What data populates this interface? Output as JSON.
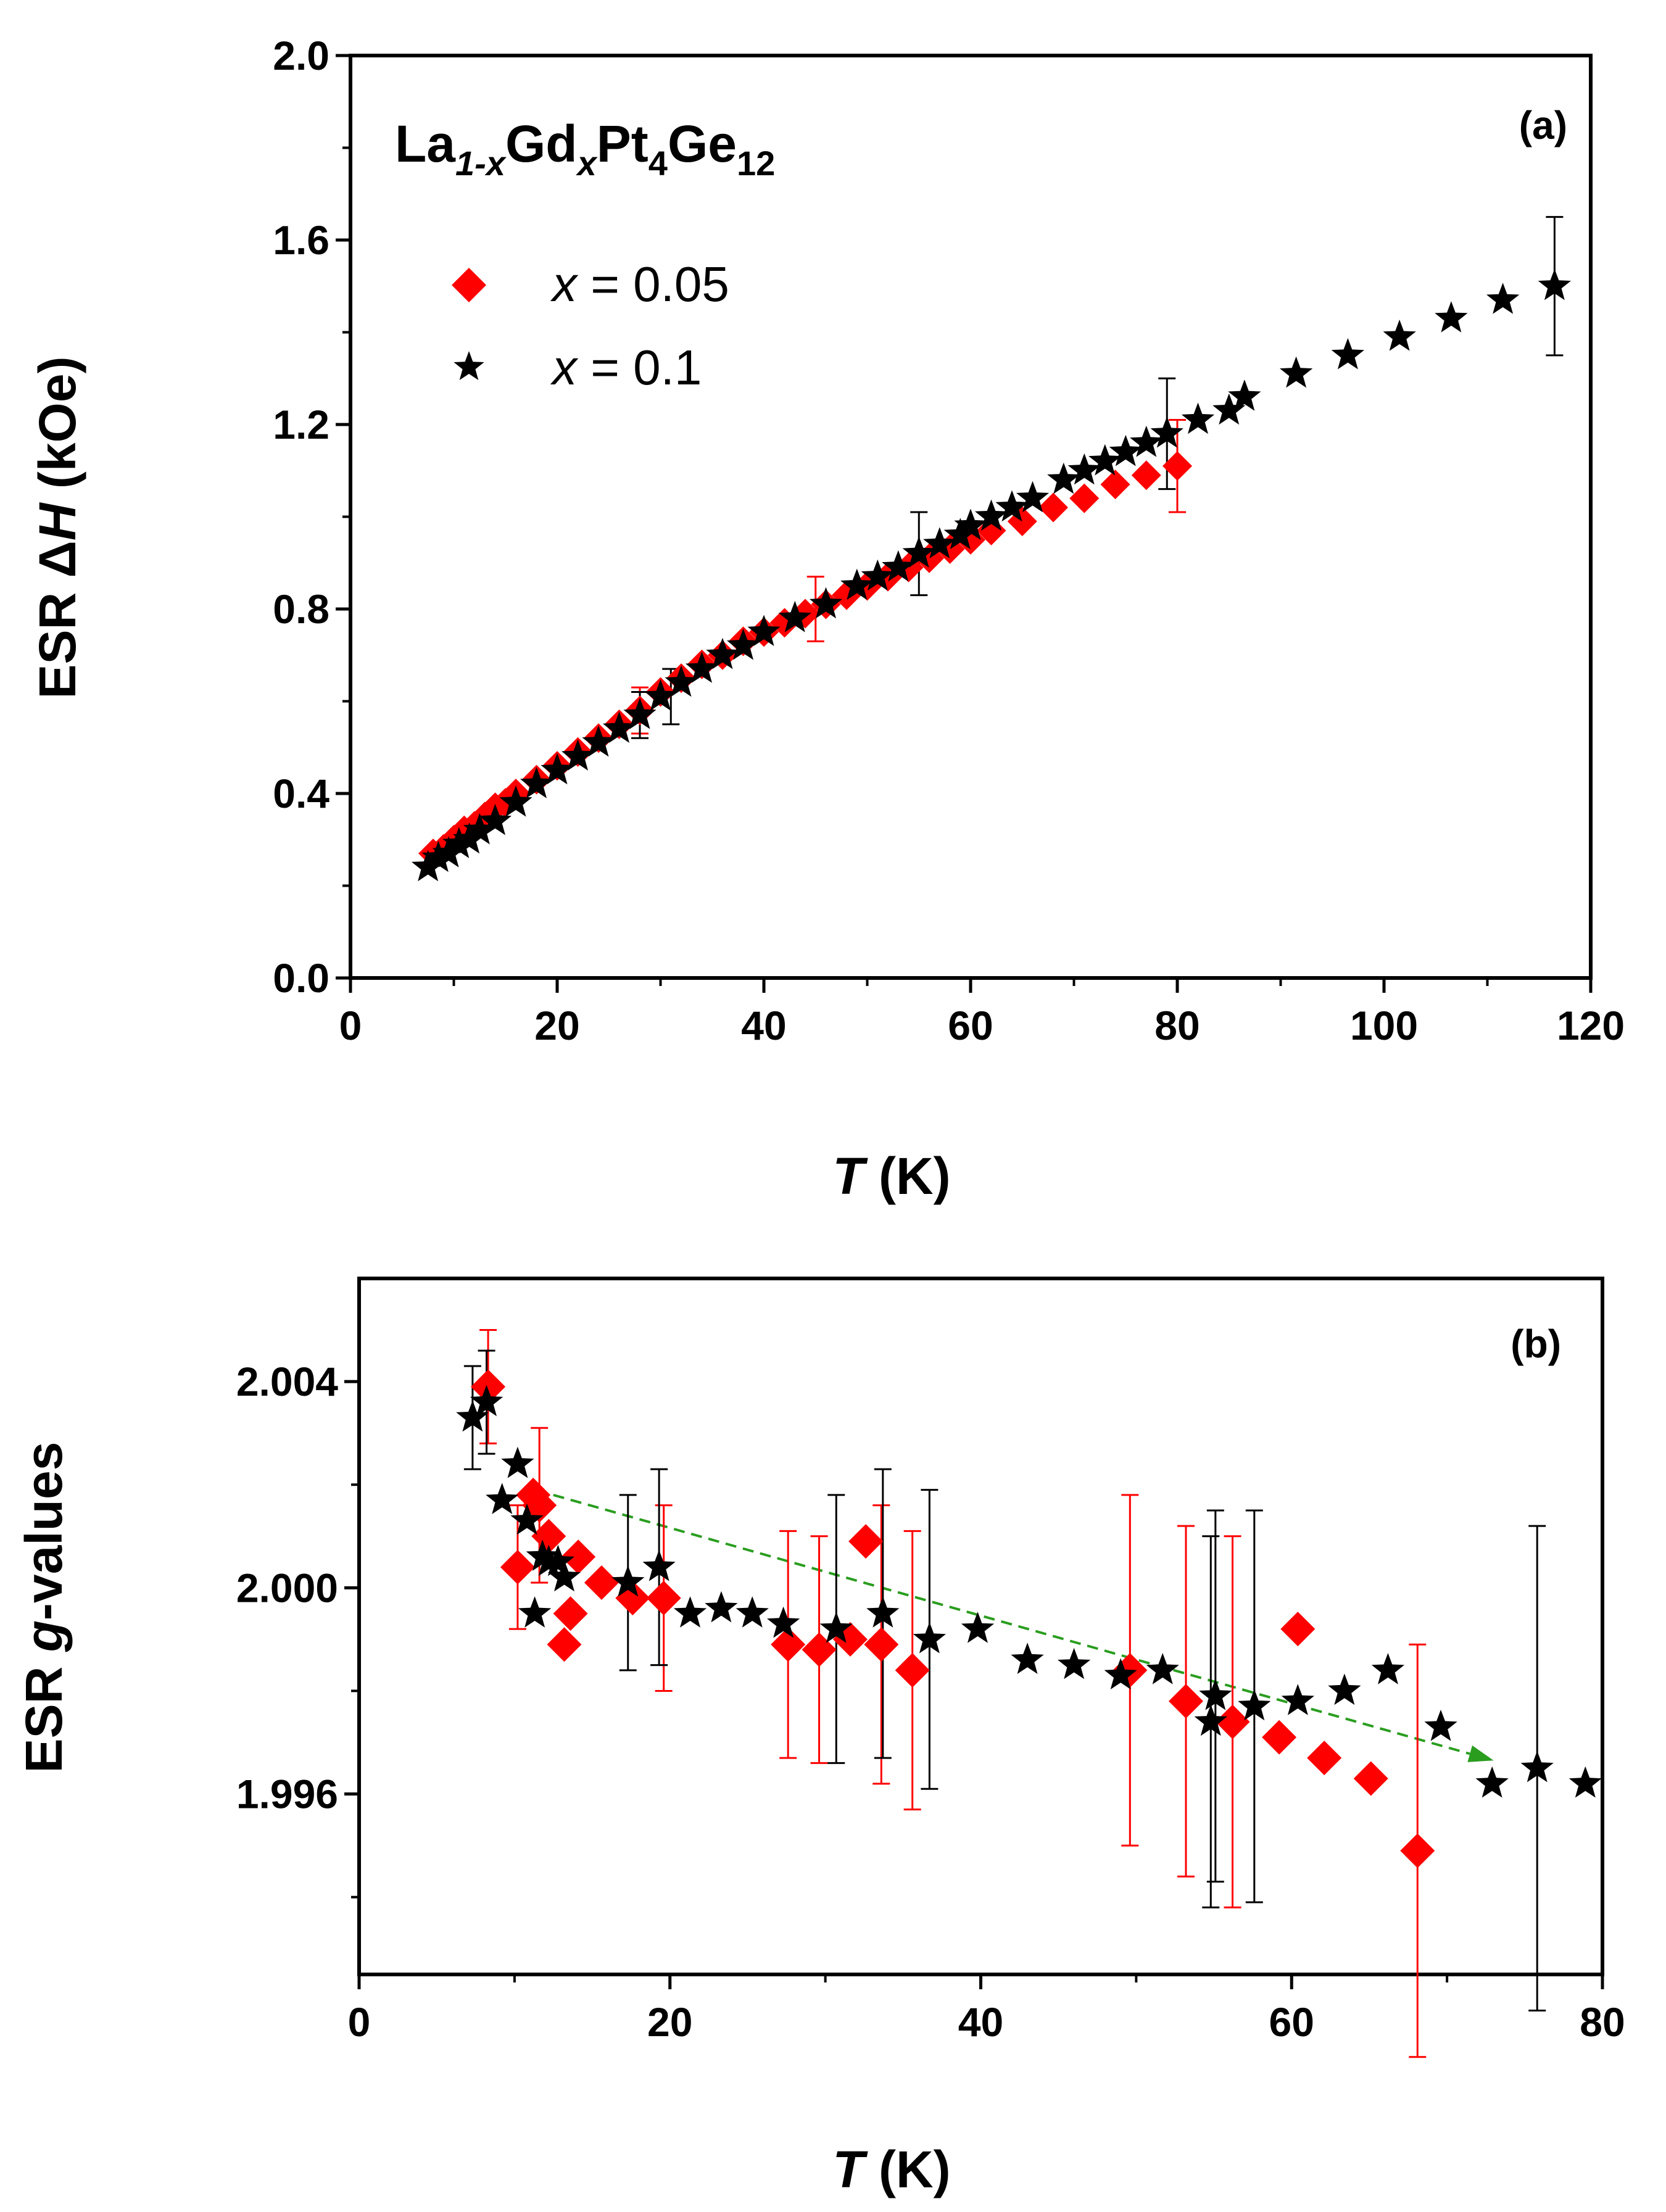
{
  "chart_data": [
    {
      "panel": "(a)",
      "type": "scatter",
      "formula": {
        "el1": "La",
        "sub1": "1-x",
        "el2": "Gd",
        "sub2": "x",
        "el3": "Pt",
        "sub3": "4",
        "el4": "Ge",
        "sub4": "12"
      },
      "xlabel": {
        "italic": "T",
        "rest": " (K)"
      },
      "ylabel": {
        "pre": "ESR ",
        "delta": "Δ",
        "italic": "H",
        "post": " (kOe)"
      },
      "xlim": [
        0,
        120
      ],
      "ylim": [
        0,
        2.0
      ],
      "xticks": [
        "0",
        "20",
        "40",
        "60",
        "80",
        "100",
        "120"
      ],
      "yticks": [
        "0.0",
        "0.4",
        "0.8",
        "1.2",
        "1.6",
        "2.0"
      ],
      "legend_position": "top-left",
      "series": [
        {
          "name": "x = 0.05",
          "legend_var": "x",
          "legend_rest": " = 0.05",
          "marker": "diamond",
          "color": "#ff0000",
          "x": [
            8,
            9,
            10,
            11,
            12,
            13,
            14,
            15,
            16,
            18,
            20,
            22,
            24,
            26,
            28,
            30,
            32,
            34,
            36,
            38,
            40,
            42,
            44,
            46,
            48,
            50,
            52,
            54,
            56,
            58,
            60,
            62,
            65,
            68,
            71,
            74,
            77,
            80
          ],
          "y": [
            0.27,
            0.28,
            0.3,
            0.32,
            0.33,
            0.35,
            0.37,
            0.38,
            0.4,
            0.43,
            0.46,
            0.49,
            0.52,
            0.55,
            0.58,
            0.62,
            0.65,
            0.68,
            0.7,
            0.73,
            0.75,
            0.77,
            0.79,
            0.81,
            0.83,
            0.85,
            0.87,
            0.89,
            0.91,
            0.93,
            0.95,
            0.97,
            0.99,
            1.02,
            1.04,
            1.07,
            1.09,
            1.11
          ],
          "errors": [
            {
              "x": 28,
              "y": 0.58,
              "e": 0.05
            },
            {
              "x": 45,
              "y": 0.8,
              "e": 0.07
            },
            {
              "x": 80,
              "y": 1.11,
              "e": 0.1
            }
          ]
        },
        {
          "name": "x = 0.1",
          "legend_var": "x",
          "legend_rest": " = 0.1",
          "marker": "star",
          "color": "#000000",
          "x": [
            7.5,
            8.5,
            9.5,
            10.5,
            11.5,
            12.5,
            14,
            16,
            18,
            20,
            22,
            24,
            26,
            28,
            30,
            32,
            34,
            36,
            38,
            40,
            43,
            46,
            49,
            51,
            53,
            55,
            57,
            59,
            60,
            62,
            64,
            66,
            69,
            71,
            73,
            75,
            77,
            79,
            82,
            85,
            86.5,
            91.5,
            96.5,
            101.5,
            106.5,
            111.5,
            116.5
          ],
          "y": [
            0.24,
            0.26,
            0.27,
            0.29,
            0.3,
            0.32,
            0.34,
            0.38,
            0.42,
            0.45,
            0.48,
            0.51,
            0.54,
            0.57,
            0.61,
            0.64,
            0.67,
            0.7,
            0.72,
            0.75,
            0.78,
            0.81,
            0.85,
            0.87,
            0.89,
            0.92,
            0.94,
            0.96,
            0.98,
            1.0,
            1.02,
            1.04,
            1.08,
            1.1,
            1.12,
            1.14,
            1.16,
            1.18,
            1.21,
            1.23,
            1.26,
            1.31,
            1.35,
            1.39,
            1.43,
            1.47,
            1.5
          ],
          "errors": [
            {
              "x": 28,
              "y": 0.57,
              "e": 0.05
            },
            {
              "x": 31,
              "y": 0.61,
              "e": 0.06
            },
            {
              "x": 55,
              "y": 0.92,
              "e": 0.09
            },
            {
              "x": 79,
              "y": 1.18,
              "e": 0.12
            },
            {
              "x": 116.5,
              "y": 1.5,
              "e": 0.15
            }
          ]
        }
      ]
    },
    {
      "panel": "(b)",
      "type": "scatter",
      "xlabel": {
        "italic": "T",
        "rest": " (K)"
      },
      "ylabel": {
        "pre": "ESR ",
        "italic": "g",
        "post": "-values"
      },
      "xlim": [
        0,
        80
      ],
      "ylim": [
        1.9925,
        2.006
      ],
      "xticks": [
        "0",
        "20",
        "40",
        "60",
        "80"
      ],
      "yticks": [
        "1.996",
        "2.000",
        "2.004"
      ],
      "series": [
        {
          "name": "x = 0.05",
          "marker": "diamond",
          "color": "#ff0000",
          "x": [
            8.3,
            10.2,
            11.2,
            11.6,
            12.2,
            13.2,
            13.6,
            14.1,
            15.6,
            17.6,
            19.6,
            27.6,
            29.6,
            31.6,
            32.6,
            33.6,
            35.6,
            49.6,
            53.2,
            56.2,
            59.2,
            60.4,
            62.1,
            65.1,
            68.1
          ],
          "y": [
            2.0039,
            2.0004,
            2.0018,
            2.0016,
            2.001,
            1.9989,
            1.9995,
            2.0006,
            2.0001,
            1.9998,
            1.9998,
            1.9989,
            1.9988,
            1.999,
            2.0009,
            1.9989,
            1.9984,
            1.9984,
            1.9978,
            1.9974,
            1.9971,
            1.9992,
            1.9967,
            1.9963,
            1.9949
          ],
          "errors": [
            {
              "x": 8.3,
              "y": 2.0039,
              "e": 0.0011
            },
            {
              "x": 10.2,
              "y": 2.0004,
              "e": 0.0012
            },
            {
              "x": 11.6,
              "y": 2.0016,
              "e": 0.0015
            },
            {
              "x": 19.6,
              "y": 1.9998,
              "e": 0.0018
            },
            {
              "x": 27.6,
              "y": 1.9989,
              "e": 0.0022
            },
            {
              "x": 29.6,
              "y": 1.9988,
              "e": 0.0022
            },
            {
              "x": 33.6,
              "y": 1.9989,
              "e": 0.0027
            },
            {
              "x": 35.6,
              "y": 1.9984,
              "e": 0.0027
            },
            {
              "x": 49.6,
              "y": 1.9984,
              "e": 0.0034
            },
            {
              "x": 53.2,
              "y": 1.9978,
              "e": 0.0034
            },
            {
              "x": 56.2,
              "y": 1.9974,
              "e": 0.0036
            },
            {
              "x": 68.1,
              "y": 1.9949,
              "e": 0.004
            }
          ]
        },
        {
          "name": "x = 0.1",
          "marker": "star",
          "color": "#000000",
          "x": [
            7.3,
            8.2,
            9.2,
            10.2,
            10.8,
            11.3,
            11.8,
            12.2,
            12.8,
            13.2,
            17.3,
            19.3,
            21.3,
            23.3,
            25.3,
            27.3,
            30.7,
            33.7,
            36.7,
            39.8,
            43.0,
            46.0,
            49.0,
            51.7,
            54.8,
            55.1,
            57.6,
            60.4,
            63.4,
            66.2,
            69.6,
            72.9,
            75.8,
            78.9
          ],
          "y": [
            2.0033,
            2.0036,
            2.0017,
            2.0024,
            2.0013,
            1.9995,
            2.0006,
            2.0005,
            2.0005,
            2.0002,
            2.0001,
            2.0004,
            1.9995,
            1.9996,
            1.9995,
            1.9993,
            1.9992,
            1.9995,
            1.999,
            1.9992,
            1.9986,
            1.9985,
            1.9983,
            1.9984,
            1.9974,
            1.9979,
            1.9977,
            1.9978,
            1.998,
            1.9984,
            1.9973,
            1.9962,
            1.9965,
            1.9962
          ],
          "errors": [
            {
              "x": 7.3,
              "y": 2.0033,
              "e": 0.001
            },
            {
              "x": 8.2,
              "y": 2.0036,
              "e": 0.001
            },
            {
              "x": 17.3,
              "y": 2.0001,
              "e": 0.0017
            },
            {
              "x": 19.3,
              "y": 2.0004,
              "e": 0.0019
            },
            {
              "x": 30.7,
              "y": 1.9992,
              "e": 0.0026
            },
            {
              "x": 33.7,
              "y": 1.9995,
              "e": 0.0028
            },
            {
              "x": 36.7,
              "y": 1.999,
              "e": 0.0029
            },
            {
              "x": 54.8,
              "y": 1.9974,
              "e": 0.0036
            },
            {
              "x": 55.1,
              "y": 1.9979,
              "e": 0.0036
            },
            {
              "x": 57.6,
              "y": 1.9977,
              "e": 0.0038
            },
            {
              "x": 75.8,
              "y": 1.9965,
              "e": 0.0047
            }
          ]
        }
      ],
      "arrow": {
        "color": "#2a9d1f",
        "from": [
          12.5,
          2.0018
        ],
        "to": [
          73,
          1.99665
        ]
      }
    }
  ]
}
